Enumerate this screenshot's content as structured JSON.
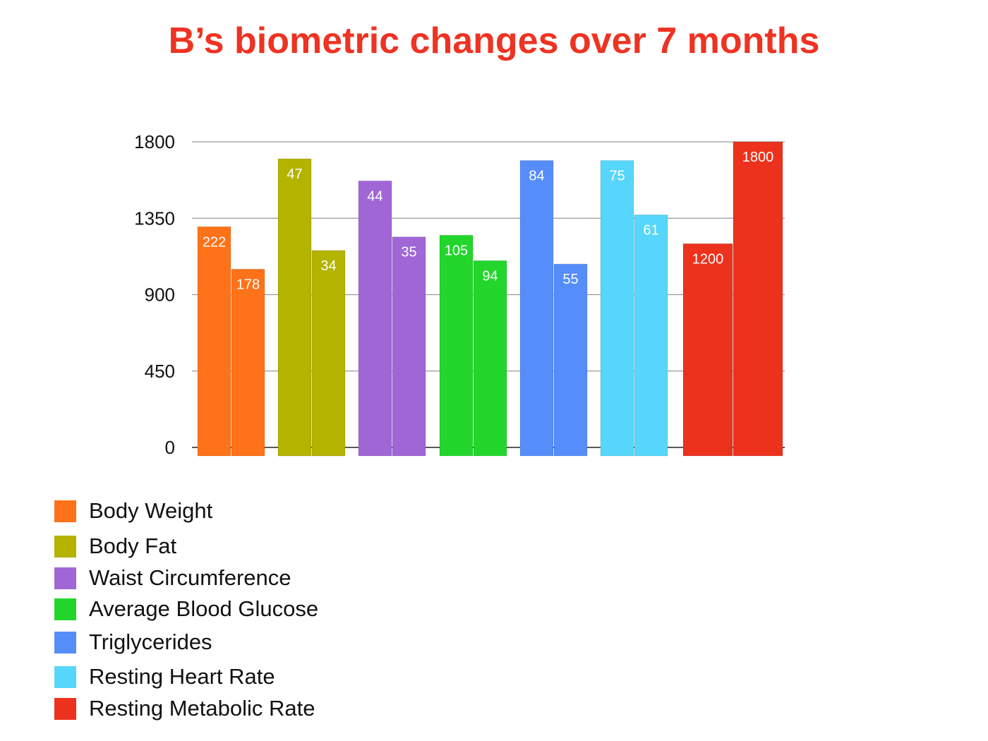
{
  "chart_data": {
    "type": "bar",
    "title": "B’s biometric changes over 7 months",
    "xlabel": "",
    "ylabel": "",
    "ylim": [
      0,
      1800
    ],
    "yticks": [
      0,
      450,
      900,
      1350,
      1800
    ],
    "grid": true,
    "legend_position": "bottom-left",
    "title_color": "#ee3322",
    "series": [
      {
        "name": "Body Weight",
        "color": "#ff7219",
        "values": [
          1300,
          1050
        ],
        "labels": [
          "222",
          "178"
        ]
      },
      {
        "name": "Body Fat",
        "color": "#b3b300",
        "values": [
          1700,
          1160
        ],
        "labels": [
          "47",
          "34"
        ]
      },
      {
        "name": "Waist Circumference",
        "color": "#a066d6",
        "values": [
          1570,
          1240
        ],
        "labels": [
          "44",
          "35"
        ]
      },
      {
        "name": "Average Blood Glucose",
        "color": "#22d62c",
        "values": [
          1250,
          1100
        ],
        "labels": [
          "105",
          "94"
        ]
      },
      {
        "name": "Triglycerides",
        "color": "#558dfa",
        "values": [
          1690,
          1080
        ],
        "labels": [
          "84",
          "55"
        ]
      },
      {
        "name": "Resting Heart Rate",
        "color": "#57d6fb",
        "values": [
          1690,
          1370
        ],
        "labels": [
          "75",
          "61"
        ]
      },
      {
        "name": "Resting Metabolic Rate",
        "color": "#ec321d",
        "values": [
          1200,
          1800
        ],
        "labels": [
          "1200",
          "1800"
        ]
      }
    ]
  }
}
